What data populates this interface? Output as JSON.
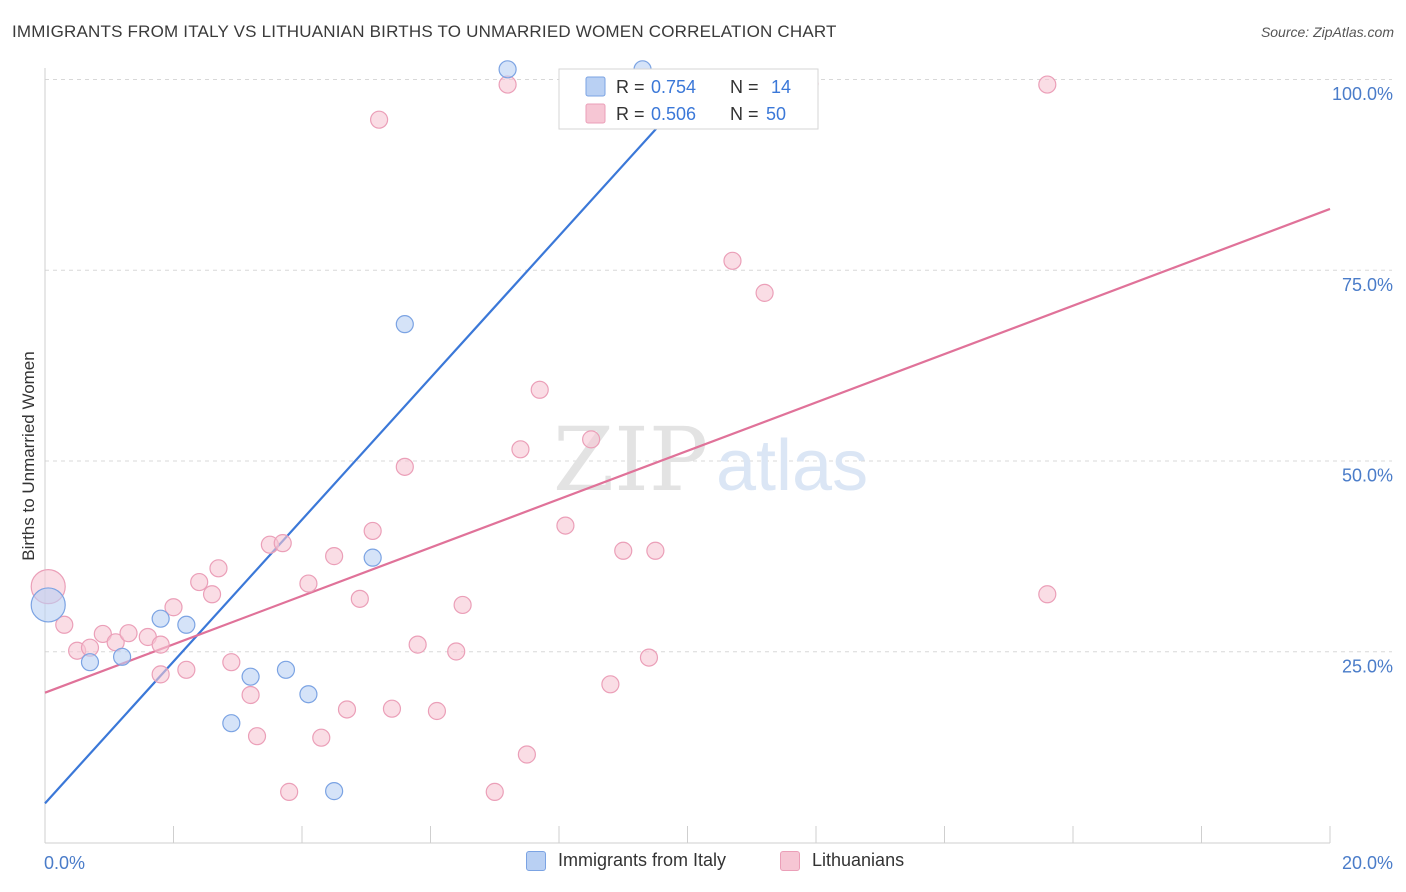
{
  "title": "IMMIGRANTS FROM ITALY VS LITHUANIAN BIRTHS TO UNMARRIED WOMEN CORRELATION CHART",
  "source": "Source: ZipAtlas.com",
  "watermark": {
    "zip": "ZIP",
    "atlas": "atlas"
  },
  "colors": {
    "blue": "#3b78d8",
    "blue_fill": "#b9d0f3",
    "blue_stroke": "#7ba3e3",
    "pink": "#e07299",
    "pink_fill": "#f6c6d4",
    "pink_stroke": "#eb9fb8",
    "tick_label": "#4a7cc9",
    "grid": "#d8d8d8"
  },
  "legend": {
    "rows": [
      {
        "r_label": "R = ",
        "r_value": "0.754",
        "n_label": "N = ",
        "n_value": "14"
      },
      {
        "r_label": "R = ",
        "r_value": "0.506",
        "n_label": "N = ",
        "n_value": "50"
      }
    ]
  },
  "bottom_legend": [
    "Immigrants from Italy",
    "Lithuanians"
  ],
  "chart_data": {
    "type": "scatter",
    "title": "IMMIGRANTS FROM ITALY VS LITHUANIAN BIRTHS TO UNMARRIED WOMEN CORRELATION CHART",
    "xlabel": "",
    "ylabel": "Births to Unmarried Women",
    "xlim": [
      0,
      20
    ],
    "ylim": [
      0,
      100
    ],
    "x_tick_labels": [
      "0.0%",
      "20.0%"
    ],
    "y_tick_labels": [
      "25.0%",
      "50.0%",
      "75.0%",
      "100.0%"
    ],
    "grid": true,
    "legend_position": "top-center",
    "series": [
      {
        "name": "Immigrants from Italy",
        "r": 0.754,
        "n": 14,
        "trend": {
          "x0": 0.0,
          "y0": 5.2,
          "x1": 10.2,
          "y1": 100.0
        },
        "points": [
          {
            "x": 0.05,
            "y": 31.2,
            "big": true
          },
          {
            "x": 0.7,
            "y": 23.7
          },
          {
            "x": 1.2,
            "y": 24.4
          },
          {
            "x": 1.8,
            "y": 29.4
          },
          {
            "x": 2.2,
            "y": 28.6
          },
          {
            "x": 2.9,
            "y": 15.7
          },
          {
            "x": 3.2,
            "y": 21.8
          },
          {
            "x": 3.75,
            "y": 22.7
          },
          {
            "x": 4.1,
            "y": 19.5
          },
          {
            "x": 4.5,
            "y": 6.8
          },
          {
            "x": 5.1,
            "y": 37.4
          },
          {
            "x": 5.6,
            "y": 68.0
          },
          {
            "x": 7.2,
            "y": 101.4
          },
          {
            "x": 9.3,
            "y": 101.4
          }
        ]
      },
      {
        "name": "Lithuanians",
        "r": 0.506,
        "n": 50,
        "trend": {
          "x0": 0.0,
          "y0": 19.7,
          "x1": 20.0,
          "y1": 83.1
        },
        "points": [
          {
            "x": 0.05,
            "y": 33.6,
            "big": true
          },
          {
            "x": 0.3,
            "y": 28.6
          },
          {
            "x": 0.5,
            "y": 25.2
          },
          {
            "x": 0.7,
            "y": 25.6
          },
          {
            "x": 0.9,
            "y": 27.4
          },
          {
            "x": 1.1,
            "y": 26.3
          },
          {
            "x": 1.3,
            "y": 27.5
          },
          {
            "x": 1.6,
            "y": 27.0
          },
          {
            "x": 1.8,
            "y": 26.0
          },
          {
            "x": 1.8,
            "y": 22.1
          },
          {
            "x": 2.0,
            "y": 30.9
          },
          {
            "x": 2.2,
            "y": 22.7
          },
          {
            "x": 2.4,
            "y": 34.2
          },
          {
            "x": 2.6,
            "y": 32.6
          },
          {
            "x": 2.7,
            "y": 36.0
          },
          {
            "x": 2.9,
            "y": 23.7
          },
          {
            "x": 3.2,
            "y": 19.4
          },
          {
            "x": 3.3,
            "y": 14.0
          },
          {
            "x": 3.5,
            "y": 39.1
          },
          {
            "x": 3.7,
            "y": 39.3
          },
          {
            "x": 3.8,
            "y": 6.7
          },
          {
            "x": 4.1,
            "y": 34.0
          },
          {
            "x": 4.3,
            "y": 13.8
          },
          {
            "x": 4.5,
            "y": 37.6
          },
          {
            "x": 4.7,
            "y": 17.5
          },
          {
            "x": 4.9,
            "y": 32.0
          },
          {
            "x": 5.1,
            "y": 40.9
          },
          {
            "x": 5.2,
            "y": 94.8
          },
          {
            "x": 5.4,
            "y": 17.6
          },
          {
            "x": 5.6,
            "y": 49.3
          },
          {
            "x": 5.8,
            "y": 26.0
          },
          {
            "x": 6.1,
            "y": 17.3
          },
          {
            "x": 6.4,
            "y": 25.1
          },
          {
            "x": 6.5,
            "y": 31.2
          },
          {
            "x": 7.0,
            "y": 6.7
          },
          {
            "x": 7.2,
            "y": 99.4
          },
          {
            "x": 7.4,
            "y": 51.6
          },
          {
            "x": 7.5,
            "y": 11.6
          },
          {
            "x": 7.7,
            "y": 59.4
          },
          {
            "x": 8.1,
            "y": 41.6
          },
          {
            "x": 8.5,
            "y": 52.9
          },
          {
            "x": 8.8,
            "y": 20.8
          },
          {
            "x": 9.0,
            "y": 38.3
          },
          {
            "x": 9.4,
            "y": 24.3
          },
          {
            "x": 9.5,
            "y": 38.3
          },
          {
            "x": 10.7,
            "y": 76.3
          },
          {
            "x": 11.2,
            "y": 72.1
          },
          {
            "x": 11.9,
            "y": 99.5
          },
          {
            "x": 15.6,
            "y": 99.4
          },
          {
            "x": 15.6,
            "y": 32.6
          }
        ]
      }
    ]
  }
}
